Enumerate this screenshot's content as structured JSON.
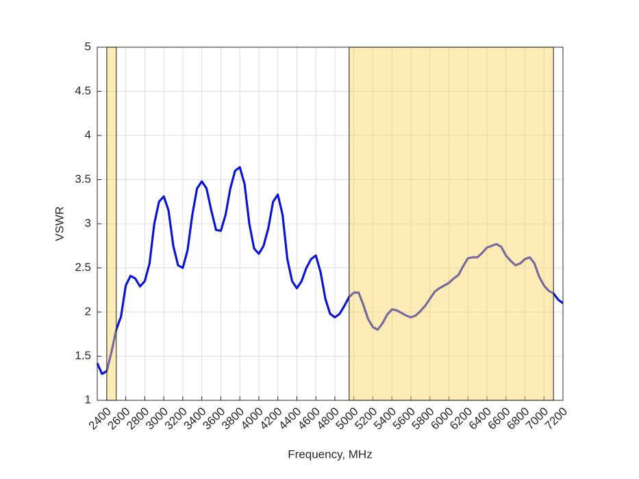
{
  "chart_data": {
    "type": "line",
    "xlabel": "Frequency, MHz",
    "ylabel": "VSWR",
    "x": [
      2300,
      2350,
      2400,
      2450,
      2500,
      2550,
      2600,
      2650,
      2700,
      2750,
      2800,
      2850,
      2900,
      2950,
      3000,
      3050,
      3100,
      3150,
      3200,
      3250,
      3300,
      3350,
      3400,
      3450,
      3500,
      3550,
      3600,
      3650,
      3700,
      3750,
      3800,
      3850,
      3900,
      3950,
      4000,
      4050,
      4100,
      4150,
      4200,
      4250,
      4300,
      4350,
      4400,
      4450,
      4500,
      4550,
      4600,
      4650,
      4700,
      4750,
      4800,
      4850,
      4900,
      4950,
      5000,
      5050,
      5100,
      5150,
      5200,
      5250,
      5300,
      5350,
      5400,
      5450,
      5500,
      5550,
      5600,
      5650,
      5700,
      5750,
      5800,
      5850,
      5900,
      5950,
      6000,
      6050,
      6100,
      6150,
      6200,
      6250,
      6300,
      6350,
      6400,
      6450,
      6500,
      6550,
      6600,
      6650,
      6700,
      6750,
      6800,
      6850,
      6900,
      6950,
      7000,
      7050,
      7100,
      7150,
      7200
    ],
    "series": [
      {
        "color": "#0a14d6",
        "values": [
          1.42,
          1.3,
          1.33,
          1.55,
          1.8,
          1.95,
          2.3,
          2.41,
          2.38,
          2.29,
          2.35,
          2.55,
          3.0,
          3.25,
          3.31,
          3.15,
          2.75,
          2.53,
          2.5,
          2.7,
          3.1,
          3.4,
          3.48,
          3.4,
          3.15,
          2.93,
          2.92,
          3.1,
          3.4,
          3.6,
          3.64,
          3.45,
          3.0,
          2.72,
          2.66,
          2.75,
          2.95,
          3.25,
          3.33,
          3.1,
          2.6,
          2.35,
          2.27,
          2.35,
          2.5,
          2.6,
          2.64,
          2.45,
          2.15,
          1.98,
          1.94,
          1.98,
          2.07,
          2.17,
          2.22,
          2.22,
          2.08,
          1.92,
          1.83,
          1.8,
          1.87,
          1.97,
          2.03,
          2.02,
          1.99,
          1.96,
          1.94,
          1.96,
          2.01,
          2.07,
          2.15,
          2.23,
          2.27,
          2.3,
          2.33,
          2.38,
          2.42,
          2.52,
          2.61,
          2.62,
          2.62,
          2.67,
          2.73,
          2.75,
          2.77,
          2.74,
          2.64,
          2.58,
          2.53,
          2.55,
          2.6,
          2.62,
          2.55,
          2.4,
          2.3,
          2.24,
          2.21,
          2.14,
          2.1
        ]
      }
    ],
    "bands": [
      [
        2400,
        2500
      ],
      [
        4950,
        7100
      ]
    ],
    "band_color": "#fdd35a",
    "xlim": [
      2300,
      7200
    ],
    "xticks": [
      2400,
      2600,
      2800,
      3000,
      3200,
      3400,
      3600,
      3800,
      4000,
      4200,
      4400,
      4600,
      4800,
      5000,
      5200,
      5400,
      5600,
      5800,
      6000,
      6200,
      6400,
      6600,
      6800,
      7000,
      7200
    ],
    "ylim": [
      1,
      5
    ],
    "yticks": [
      1,
      1.5,
      2,
      2.5,
      3,
      3.5,
      4,
      4.5,
      5
    ],
    "grid": true
  }
}
